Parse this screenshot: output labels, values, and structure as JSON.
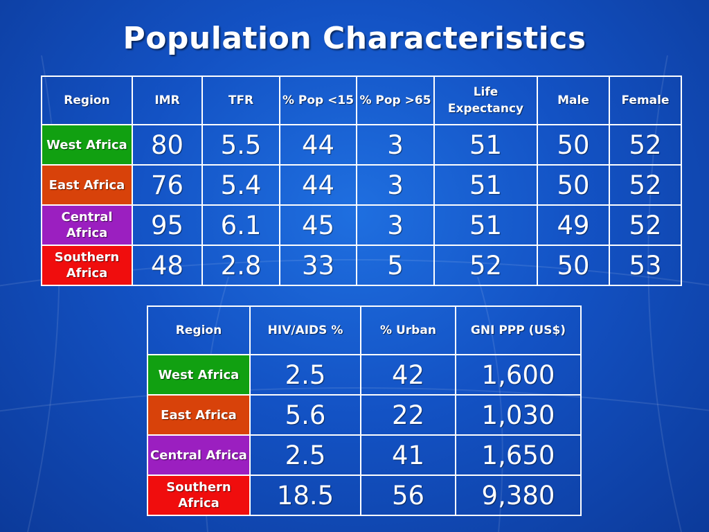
{
  "slide": {
    "title": "Population Characteristics"
  },
  "colors": {
    "background": "#1352c4",
    "west_africa": "#11a011",
    "east_africa": "#d8420a",
    "central_africa": "#9b1fc0",
    "southern_africa": "#f00d0d"
  },
  "table1": {
    "headers": [
      "Region",
      "IMR",
      "TFR",
      "% Pop <15",
      "% Pop >65",
      "Life Expectancy",
      "Male",
      "Female"
    ],
    "rows": [
      {
        "region": "West Africa",
        "values": [
          "80",
          "5.5",
          "44",
          "3",
          "51",
          "50",
          "52"
        ]
      },
      {
        "region": "East Africa",
        "values": [
          "76",
          "5.4",
          "44",
          "3",
          "51",
          "50",
          "52"
        ]
      },
      {
        "region": "Central Africa",
        "values": [
          "95",
          "6.1",
          "45",
          "3",
          "51",
          "49",
          "52"
        ]
      },
      {
        "region": "Southern Africa",
        "values": [
          "48",
          "2.8",
          "33",
          "5",
          "52",
          "50",
          "53"
        ]
      }
    ]
  },
  "table2": {
    "headers": [
      "Region",
      "HIV/AIDS %",
      "% Urban",
      "GNI PPP (US$)"
    ],
    "rows": [
      {
        "region": "West Africa",
        "values": [
          "2.5",
          "42",
          "1,600"
        ]
      },
      {
        "region": "East Africa",
        "values": [
          "5.6",
          "22",
          "1,030"
        ]
      },
      {
        "region": "Central Africa",
        "values": [
          "2.5",
          "41",
          "1,650"
        ]
      },
      {
        "region": "Southern Africa",
        "values": [
          "18.5",
          "56",
          "9,380"
        ]
      }
    ]
  }
}
